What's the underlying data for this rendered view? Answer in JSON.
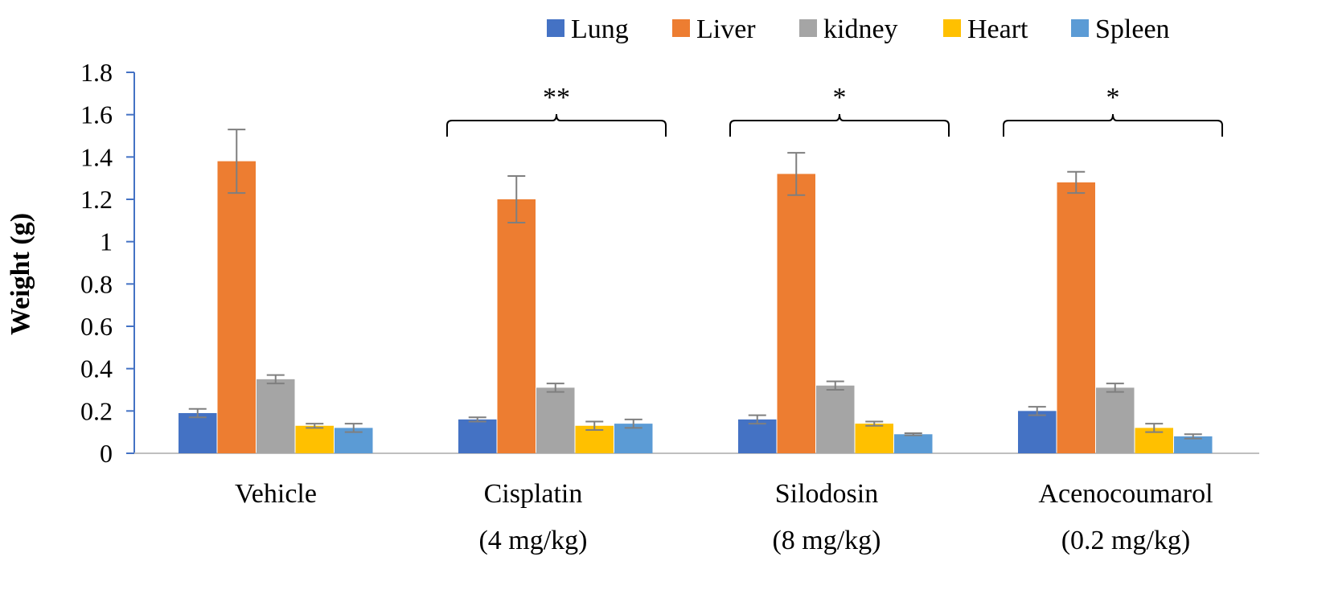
{
  "chart_data": {
    "type": "bar",
    "ylabel": "Weight (g)",
    "ylim": [
      0,
      1.8
    ],
    "y_ticks": [
      "0",
      "0.2",
      "0.4",
      "0.6",
      "0.8",
      "1",
      "1.2",
      "1.4",
      "1.6",
      "1.8"
    ],
    "y_tick_values": [
      0,
      0.2,
      0.4,
      0.6,
      0.8,
      1.0,
      1.2,
      1.4,
      1.6,
      1.8
    ],
    "legend_position": "top-right",
    "grid": false,
    "categories": [
      {
        "line1": "Vehicle",
        "line2": ""
      },
      {
        "line1": "Cisplatin",
        "line2": "(4 mg/kg)"
      },
      {
        "line1": "Silodosin",
        "line2": "(8 mg/kg)"
      },
      {
        "line1": "Acenocoumarol",
        "line2": "(0.2 mg/kg)"
      }
    ],
    "series": [
      {
        "name": "Lung",
        "color": "#4472C4",
        "values": [
          0.19,
          0.16,
          0.16,
          0.2
        ],
        "errors": [
          0.02,
          0.01,
          0.02,
          0.02
        ]
      },
      {
        "name": "Liver",
        "color": "#ED7D31",
        "values": [
          1.38,
          1.2,
          1.32,
          1.28
        ],
        "errors": [
          0.15,
          0.11,
          0.1,
          0.05
        ]
      },
      {
        "name": "kidney",
        "color": "#A5A5A5",
        "values": [
          0.35,
          0.31,
          0.32,
          0.31
        ],
        "errors": [
          0.02,
          0.02,
          0.02,
          0.02
        ]
      },
      {
        "name": "Heart",
        "color": "#FFC000",
        "values": [
          0.13,
          0.13,
          0.14,
          0.12
        ],
        "errors": [
          0.01,
          0.02,
          0.01,
          0.02
        ]
      },
      {
        "name": "Spleen",
        "color": "#5B9BD5",
        "values": [
          0.12,
          0.14,
          0.09,
          0.08
        ],
        "errors": [
          0.02,
          0.02,
          0.005,
          0.01
        ]
      }
    ],
    "annotations": [
      {
        "category_index": 1,
        "label": "**"
      },
      {
        "category_index": 2,
        "label": "*"
      },
      {
        "category_index": 3,
        "label": "*"
      }
    ]
  }
}
